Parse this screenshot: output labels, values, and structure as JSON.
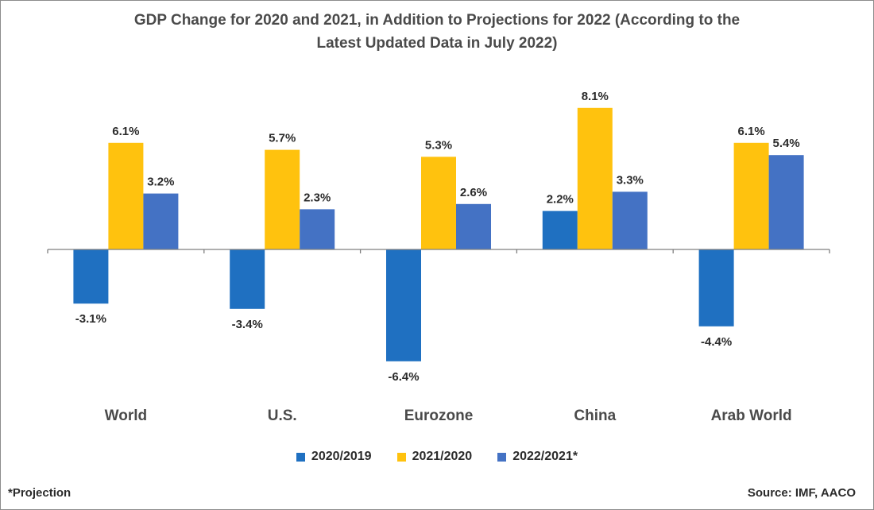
{
  "title_lines": [
    "GDP Change for 2020 and 2021, in Addition to Projections for 2022 (According to the",
    "Latest Updated Data in July 2022)"
  ],
  "footnote": "*Projection",
  "source": "Source: IMF, AACO",
  "colors": {
    "series_2020_2019": "#1f70c1",
    "series_2021_2020": "#ffc20e",
    "series_2022_2021": "#4472c4",
    "text": "#4a4a4a",
    "axis": "#7f7f7f"
  },
  "chart_data": {
    "type": "bar",
    "title": "GDP Change for 2020 and 2021, in Addition to Projections for 2022 (According to the Latest Updated Data in July 2022)",
    "categories": [
      "World",
      "U.S.",
      "Eurozone",
      "China",
      "Arab World"
    ],
    "series": [
      {
        "name": "2020/2019",
        "values": [
          -3.1,
          -3.4,
          -6.4,
          2.2,
          -4.4
        ],
        "labels": [
          "-3.1%",
          "-3.4%",
          "-6.4%",
          "2.2%",
          "-4.4%"
        ]
      },
      {
        "name": "2021/2020",
        "values": [
          6.1,
          5.7,
          5.3,
          8.1,
          6.1
        ],
        "labels": [
          "6.1%",
          "5.7%",
          "5.3%",
          "8.1%",
          "6.1%"
        ]
      },
      {
        "name": "2022/2021*",
        "values": [
          3.2,
          2.3,
          2.6,
          3.3,
          5.4
        ],
        "labels": [
          "3.2%",
          "2.3%",
          "2.6%",
          "3.3%",
          "5.4%"
        ]
      }
    ],
    "xlabel": "",
    "ylabel": "",
    "ylim": [
      -8,
      9
    ],
    "grid": false,
    "legend_position": "bottom"
  }
}
